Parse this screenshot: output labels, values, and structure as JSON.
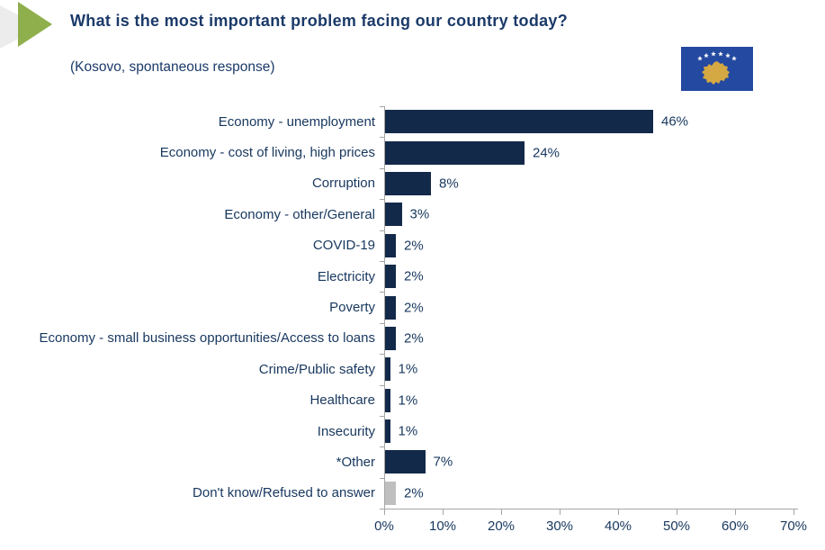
{
  "header": {
    "title": "What is the most important problem facing our country today?",
    "subtitle": "(Kosovo, spontaneous response)"
  },
  "flag": {
    "country": "Kosovo",
    "background_color": "#2449A0",
    "map_color": "#D4A843",
    "star_color": "#FFFFFF",
    "star_count": 6
  },
  "colors": {
    "bar": "#13294A",
    "bar_muted": "#BFBFBF",
    "text": "#17375E",
    "title": "#1B3A69",
    "axis": "#A6A6A6",
    "accent_green": "#8FAF4C",
    "decor_gray": "#ECECEC"
  },
  "chart_data": {
    "type": "bar",
    "orientation": "horizontal",
    "title": "What is the most important problem facing our country today?",
    "subtitle": "(Kosovo, spontaneous response)",
    "categories": [
      "Economy - unemployment",
      "Economy - cost of living, high prices",
      "Corruption",
      "Economy - other/General",
      "COVID-19",
      "Electricity",
      "Poverty",
      "Economy - small business opportunities/Access to loans",
      "Crime/Public safety",
      "Healthcare",
      "Insecurity",
      "*Other",
      "Don't know/Refused to answer"
    ],
    "values": [
      46,
      24,
      8,
      3,
      2,
      2,
      2,
      2,
      1,
      1,
      1,
      7,
      2
    ],
    "value_labels": [
      "46%",
      "24%",
      "8%",
      "3%",
      "2%",
      "2%",
      "2%",
      "2%",
      "1%",
      "1%",
      "1%",
      "7%",
      "2%"
    ],
    "muted_categories": [
      "Don't know/Refused to answer"
    ],
    "x_ticks": [
      "0%",
      "10%",
      "20%",
      "30%",
      "40%",
      "50%",
      "60%",
      "70%"
    ],
    "xlim": [
      0,
      70
    ],
    "grid": false,
    "legend": "none",
    "value_label_position": "right_of_bar"
  }
}
